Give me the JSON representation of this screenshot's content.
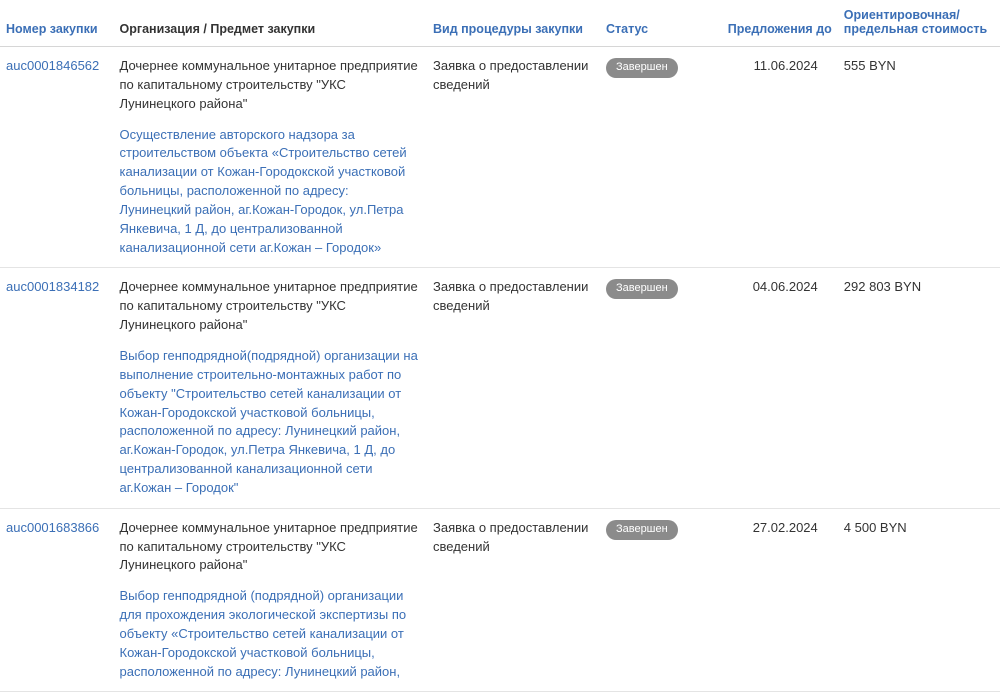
{
  "headers": {
    "number": "Номер закупки",
    "org": "Организация / Предмет закупки",
    "type": "Вид процедуры закупки",
    "status": "Статус",
    "deadline": "Предложения до",
    "cost": "Ориентировочная/ предельная стоимость"
  },
  "rows": [
    {
      "number": "auc0001846562",
      "org": "Дочернее коммунальное унитарное предприятие по капитальному строительству \"УКС Лунинецкого района\"",
      "subject": "Осуществление авторского надзора за строительством объекта «Строительство сетей канализации от Кожан-Городокской участковой больницы, расположенной по адресу: Лунинецкий район, аг.Кожан-Городок, ул.Петра Янкевича, 1 Д, до централизованной канализационной сети аг.Кожан – Городок»",
      "type": "Заявка о предоставлении сведений",
      "status": "Завершен",
      "deadline": "11.06.2024",
      "cost": "555 BYN"
    },
    {
      "number": "auc0001834182",
      "org": "Дочернее коммунальное унитарное предприятие по капитальному строительству \"УКС Лунинецкого района\"",
      "subject": "Выбор генподрядной(подрядной) организации на выполнение строительно-монтажных работ по объекту \"Строительство сетей канализации от Кожан-Городокской участковой больницы, расположенной по адресу: Лунинецкий район, аг.Кожан-Городок, ул.Петра Янкевича, 1 Д, до централизованной канализационной сети аг.Кожан – Городок\"",
      "type": "Заявка о предоставлении сведений",
      "status": "Завершен",
      "deadline": "04.06.2024",
      "cost": "292 803 BYN"
    },
    {
      "number": "auc0001683866",
      "org": "Дочернее коммунальное унитарное предприятие по капитальному строительству \"УКС Лунинецкого района\"",
      "subject": "Выбор генподрядной (подрядной) организации для прохождения экологической экспертизы по объекту «Строительство сетей канализации от Кожан-Городокской участковой больницы, расположенной по адресу: Лунинецкий район,",
      "type": "Заявка о предоставлении сведений",
      "status": "Завершен",
      "deadline": "27.02.2024",
      "cost": "4 500 BYN"
    }
  ]
}
